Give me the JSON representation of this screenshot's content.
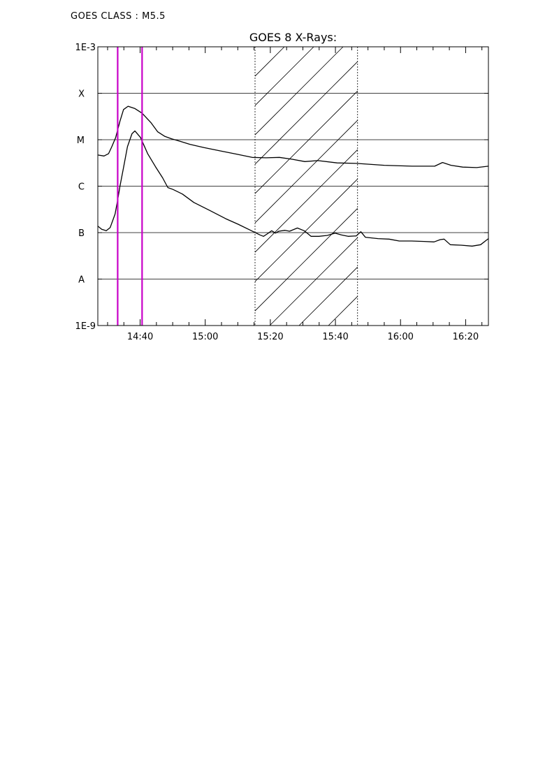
{
  "header": {
    "goes_class": "GOES CLASS : M5.5"
  },
  "chart_data": {
    "type": "line",
    "title": "GOES 8 X-Rays:",
    "xlabel": "",
    "ylabel": "",
    "y_scale": "log",
    "ylim_exponent": [
      -9,
      -3
    ],
    "x_range_minutes": [
      867,
      987
    ],
    "x_tick_labels": [
      {
        "label": "14:40",
        "value": 880
      },
      {
        "label": "15:00",
        "value": 900
      },
      {
        "label": "15:20",
        "value": 920
      },
      {
        "label": "15:40",
        "value": 940
      },
      {
        "label": "16:00",
        "value": 960
      },
      {
        "label": "16:20",
        "value": 980
      }
    ],
    "y_tick_labels": [
      {
        "label": "1E-9",
        "exp": -9
      },
      {
        "label": "A",
        "exp": -8
      },
      {
        "label": "B",
        "exp": -7
      },
      {
        "label": "C",
        "exp": -6
      },
      {
        "label": "M",
        "exp": -5
      },
      {
        "label": "X",
        "exp": -4
      },
      {
        "label": "1E-3",
        "exp": -3
      }
    ],
    "grid_exponents": [
      -8,
      -7,
      -6,
      -5,
      -4
    ],
    "grid": true,
    "series": [
      {
        "comment_free_points": true,
        "color": "#000000",
        "points": [
          [
            867,
            -5.33
          ],
          [
            868.9,
            -5.35
          ],
          [
            870.3,
            -5.3
          ],
          [
            871.3,
            -5.15
          ],
          [
            872.5,
            -4.95
          ],
          [
            873.8,
            -4.6
          ],
          [
            874.9,
            -4.35
          ],
          [
            876.3,
            -4.28
          ],
          [
            878.4,
            -4.33
          ],
          [
            880.6,
            -4.43
          ],
          [
            883.3,
            -4.63
          ],
          [
            885.4,
            -4.83
          ],
          [
            887.6,
            -4.93
          ],
          [
            889.7,
            -4.98
          ],
          [
            892.1,
            -5.03
          ],
          [
            895.3,
            -5.1
          ],
          [
            899.6,
            -5.17
          ],
          [
            904.6,
            -5.24
          ],
          [
            909.6,
            -5.31
          ],
          [
            914.4,
            -5.38
          ],
          [
            918.6,
            -5.39
          ],
          [
            922.8,
            -5.38
          ],
          [
            926.6,
            -5.42
          ],
          [
            930.6,
            -5.47
          ],
          [
            934.6,
            -5.45
          ],
          [
            940.5,
            -5.5
          ],
          [
            946.4,
            -5.51
          ],
          [
            955,
            -5.55
          ],
          [
            963.6,
            -5.57
          ],
          [
            970.5,
            -5.57
          ],
          [
            972.9,
            -5.49
          ],
          [
            975.5,
            -5.55
          ],
          [
            979.1,
            -5.59
          ],
          [
            983.4,
            -5.6
          ],
          [
            987,
            -5.57
          ]
        ]
      },
      {
        "comment_free_points": true,
        "color": "#000000",
        "points": [
          [
            867,
            -6.86
          ],
          [
            868.2,
            -6.93
          ],
          [
            869.6,
            -6.96
          ],
          [
            870.8,
            -6.89
          ],
          [
            872.3,
            -6.6
          ],
          [
            873.1,
            -6.3
          ],
          [
            873.8,
            -6.0
          ],
          [
            874.9,
            -5.6
          ],
          [
            876.1,
            -5.15
          ],
          [
            877.5,
            -4.87
          ],
          [
            878.4,
            -4.81
          ],
          [
            880.1,
            -4.95
          ],
          [
            882.3,
            -5.3
          ],
          [
            884.7,
            -5.58
          ],
          [
            886.9,
            -5.82
          ],
          [
            888.5,
            -6.03
          ],
          [
            890.1,
            -6.07
          ],
          [
            893,
            -6.17
          ],
          [
            896.5,
            -6.35
          ],
          [
            901.3,
            -6.52
          ],
          [
            906.3,
            -6.7
          ],
          [
            910.1,
            -6.82
          ],
          [
            914.2,
            -6.96
          ],
          [
            916.8,
            -7.05
          ],
          [
            917.9,
            -7.08
          ],
          [
            919,
            -7.03
          ],
          [
            920.4,
            -6.96
          ],
          [
            921.6,
            -7.01
          ],
          [
            922.6,
            -6.97
          ],
          [
            924.5,
            -6.95
          ],
          [
            925.9,
            -6.97
          ],
          [
            928.3,
            -6.9
          ],
          [
            930.4,
            -6.96
          ],
          [
            932.5,
            -7.08
          ],
          [
            934.9,
            -7.08
          ],
          [
            937.5,
            -7.06
          ],
          [
            939.9,
            -7.01
          ],
          [
            941.8,
            -7.05
          ],
          [
            943.9,
            -7.08
          ],
          [
            946.4,
            -7.07
          ],
          [
            947.8,
            -6.98
          ],
          [
            949.2,
            -7.1
          ],
          [
            953.1,
            -7.13
          ],
          [
            956.5,
            -7.14
          ],
          [
            959.6,
            -7.18
          ],
          [
            963.4,
            -7.18
          ],
          [
            967.2,
            -7.19
          ],
          [
            970.3,
            -7.2
          ],
          [
            972.2,
            -7.15
          ],
          [
            973.4,
            -7.14
          ],
          [
            975.3,
            -7.26
          ],
          [
            978.6,
            -7.27
          ],
          [
            982,
            -7.29
          ],
          [
            984.6,
            -7.26
          ],
          [
            987,
            -7.13
          ]
        ]
      }
    ],
    "markers": [
      {
        "x": 873.1,
        "color": "#c800c8"
      },
      {
        "x": 880.6,
        "color": "#c800c8"
      }
    ],
    "hatched_region": {
      "x_start": 915.3,
      "x_end": 946.8
    },
    "legend": "none"
  }
}
